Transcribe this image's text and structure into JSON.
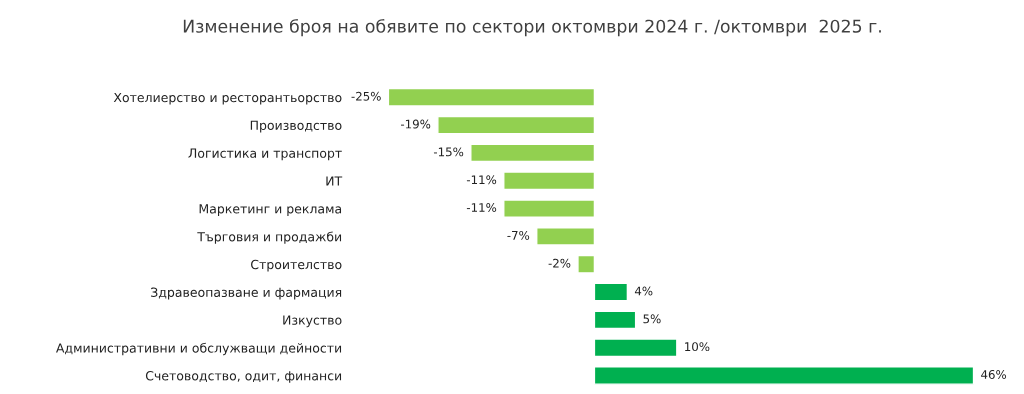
{
  "chart_data": {
    "type": "bar",
    "orientation": "horizontal",
    "title": "Изменение броя на обявите по сектори октомври 2024 г. /октомври  2025 г.",
    "categories": [
      "Хотелиерство и ресторантьорство",
      "Производство",
      "Логистика и транспорт",
      "ИТ",
      "Маркетинг и реклама",
      "Търговия и продажби",
      "Строителство",
      "Здравеопазване и фармация",
      "Изкуство",
      "Административни и обслужващи дейности",
      "Счетоводство, одит, финанси"
    ],
    "values": [
      -25,
      -19,
      -15,
      -11,
      -11,
      -7,
      -2,
      4,
      5,
      10,
      46
    ],
    "colors": [
      "#92d050",
      "#92d050",
      "#92d050",
      "#92d050",
      "#92d050",
      "#92d050",
      "#92d050",
      "#00b050",
      "#00b050",
      "#00b050",
      "#00b050"
    ],
    "value_labels": [
      "-25%",
      "-19%",
      "-15%",
      "-11%",
      "-11%",
      "-7%",
      "-2%",
      "4%",
      "5%",
      "10%",
      "46%"
    ],
    "grid": false,
    "legend": false
  }
}
